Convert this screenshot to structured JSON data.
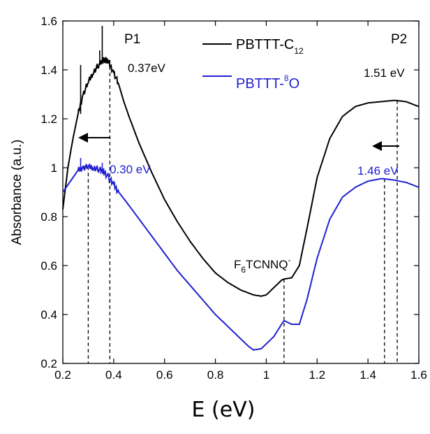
{
  "chart_data": {
    "type": "line",
    "xlabel": "E (eV)",
    "ylabel": "Absorbance (a.u.)",
    "xlim": [
      0.2,
      1.6
    ],
    "ylim": [
      0.2,
      1.6
    ],
    "xticks": [
      "0.2",
      "0.4",
      "0.6",
      "0.8",
      "1",
      "1.2",
      "1.4",
      "1.6"
    ],
    "yticks": [
      "0.2",
      "0.4",
      "0.6",
      "0.8",
      "1",
      "1.2",
      "1.4",
      "1.6"
    ],
    "grid": false,
    "legend_position": "top-center",
    "series": [
      {
        "name_main": "PBTTT-C",
        "name_sub": "12",
        "color": "#000000",
        "x": [
          0.2,
          0.22,
          0.24,
          0.26,
          0.28,
          0.3,
          0.32,
          0.34,
          0.36,
          0.37,
          0.38,
          0.4,
          0.42,
          0.44,
          0.46,
          0.5,
          0.55,
          0.6,
          0.65,
          0.7,
          0.75,
          0.8,
          0.85,
          0.9,
          0.95,
          0.98,
          1.0,
          1.03,
          1.06,
          1.07,
          1.1,
          1.13,
          1.16,
          1.2,
          1.25,
          1.3,
          1.35,
          1.4,
          1.45,
          1.5,
          1.51,
          1.55,
          1.6
        ],
        "y": [
          0.83,
          1.0,
          1.12,
          1.22,
          1.3,
          1.35,
          1.39,
          1.42,
          1.44,
          1.44,
          1.43,
          1.39,
          1.34,
          1.27,
          1.21,
          1.1,
          0.98,
          0.87,
          0.78,
          0.7,
          0.63,
          0.57,
          0.53,
          0.5,
          0.48,
          0.475,
          0.48,
          0.51,
          0.54,
          0.545,
          0.55,
          0.6,
          0.75,
          0.96,
          1.12,
          1.21,
          1.25,
          1.265,
          1.27,
          1.275,
          1.275,
          1.27,
          1.25
        ],
        "spikes": [
          {
            "x": 0.27,
            "y": 1.42
          },
          {
            "x": 0.355,
            "y": 1.58
          },
          {
            "x": 0.345,
            "y": 1.48
          }
        ]
      },
      {
        "name_main": "PBTTT-",
        "name_sup": "8",
        "name_tail": "O",
        "color": "#2020d0",
        "x": [
          0.2,
          0.22,
          0.24,
          0.26,
          0.28,
          0.3,
          0.32,
          0.34,
          0.36,
          0.38,
          0.4,
          0.42,
          0.45,
          0.5,
          0.55,
          0.6,
          0.65,
          0.7,
          0.75,
          0.8,
          0.85,
          0.9,
          0.93,
          0.95,
          0.98,
          1.0,
          1.03,
          1.06,
          1.07,
          1.1,
          1.13,
          1.16,
          1.2,
          1.25,
          1.3,
          1.35,
          1.4,
          1.45,
          1.46,
          1.5,
          1.55,
          1.6
        ],
        "y": [
          0.9,
          0.93,
          0.96,
          0.99,
          1.0,
          1.005,
          1.0,
          0.995,
          0.985,
          0.96,
          0.93,
          0.9,
          0.86,
          0.79,
          0.72,
          0.65,
          0.58,
          0.52,
          0.46,
          0.4,
          0.35,
          0.3,
          0.27,
          0.255,
          0.26,
          0.28,
          0.31,
          0.36,
          0.375,
          0.36,
          0.36,
          0.46,
          0.63,
          0.79,
          0.88,
          0.92,
          0.945,
          0.955,
          0.955,
          0.95,
          0.94,
          0.92
        ],
        "spikes": [
          {
            "x": 0.27,
            "y": 1.04
          },
          {
            "x": 0.355,
            "y": 1.02
          }
        ]
      }
    ],
    "annotations": {
      "p1": "P1",
      "p2": "P2",
      "p1_black": "0.37eV",
      "p2_black": "1.51 eV",
      "p1_blue": "0.30 eV",
      "p2_blue": "1.46 eV",
      "dopant_main": "F",
      "dopant_sub": "6",
      "dopant_tail": "TCNNQ",
      "dopant_sup": "-"
    },
    "dashed_lines_x": [
      0.3,
      0.385,
      1.07,
      1.465,
      1.515
    ]
  }
}
